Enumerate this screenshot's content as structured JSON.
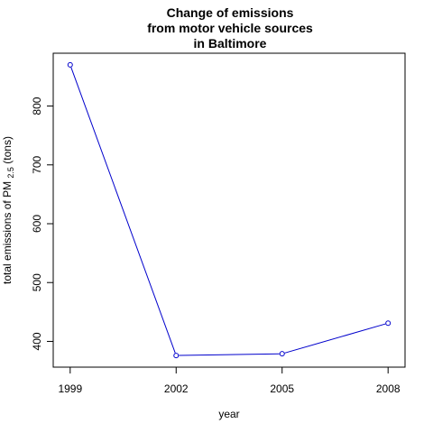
{
  "chart_data": {
    "type": "line",
    "title_lines": [
      "Change of emissions",
      "from motor vehicle sources",
      "in Baltimore"
    ],
    "xlabel": "year",
    "ylabel_prefix": "total emissions of PM ",
    "ylabel_sub": "2.5",
    "ylabel_suffix": " (tons)",
    "x": [
      1999,
      2002,
      2005,
      2008
    ],
    "y": [
      870,
      376,
      379,
      431
    ],
    "xticks": [
      1999,
      2002,
      2005,
      2008
    ],
    "yticks": [
      400,
      500,
      600,
      700,
      800
    ],
    "xlim": [
      1998.52,
      2008.48
    ],
    "ylim": [
      356.24,
      889.76
    ],
    "grid": false,
    "legend": "none",
    "line_color": "#0000cc",
    "marker": "open-circle"
  }
}
